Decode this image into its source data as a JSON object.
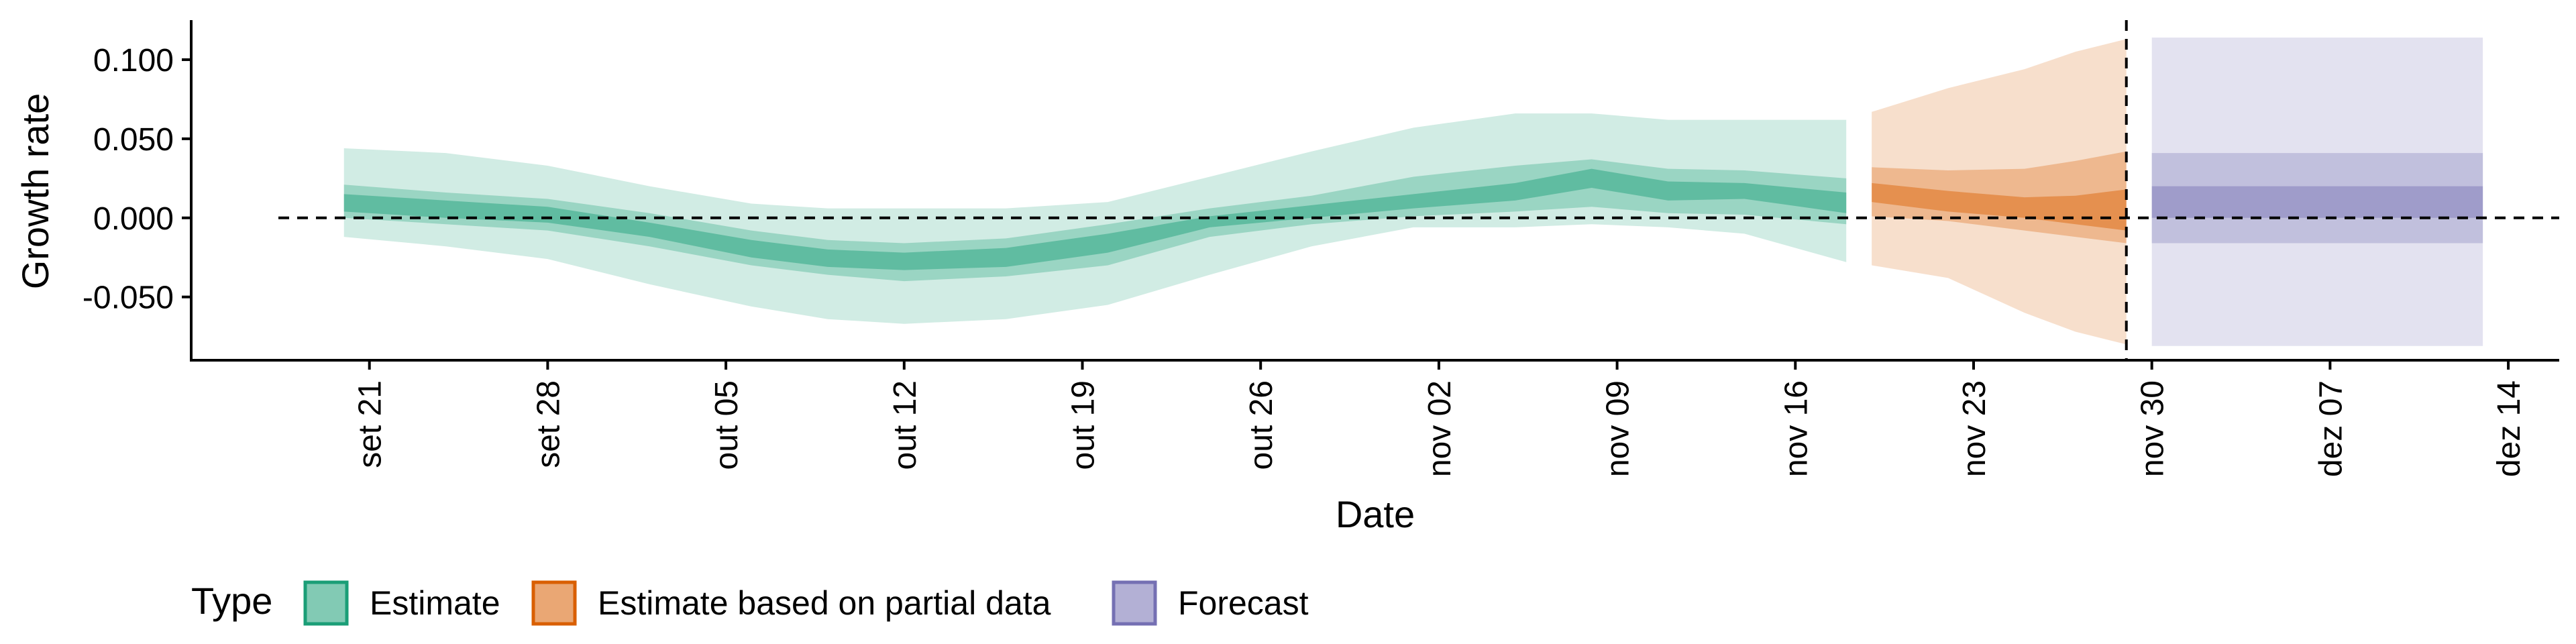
{
  "chart_data": {
    "type": "area",
    "title": "",
    "xlabel": "Date",
    "ylabel": "Growth rate",
    "x_axis": {
      "min": "2020-09-14",
      "max": "2020-12-16",
      "tick_dates": [
        "2020-09-21",
        "2020-09-28",
        "2020-10-05",
        "2020-10-12",
        "2020-10-19",
        "2020-10-26",
        "2020-11-02",
        "2020-11-09",
        "2020-11-16",
        "2020-11-23",
        "2020-11-30",
        "2020-12-07",
        "2020-12-14"
      ],
      "tick_labels": [
        "set 21",
        "set 28",
        "out 05",
        "out 12",
        "out 19",
        "out 26",
        "nov 02",
        "nov 09",
        "nov 16",
        "nov 23",
        "nov 30",
        "dez 07",
        "dez 14"
      ]
    },
    "y_axis": {
      "min": -0.09,
      "max": 0.125,
      "ticks": [
        -0.05,
        0.0,
        0.05,
        0.1
      ],
      "tick_labels": [
        "-0.050",
        "0.000",
        "0.050",
        "0.100"
      ]
    },
    "reference_lines": {
      "horizontal_y": 0,
      "vertical_date": "2020-11-29"
    },
    "legend": {
      "title": "Type",
      "position": "bottom-left",
      "items": [
        {
          "key": "estimate",
          "label": "Estimate"
        },
        {
          "key": "partial",
          "label": "Estimate based on partial data"
        },
        {
          "key": "forecast",
          "label": "Forecast"
        }
      ]
    },
    "colors": {
      "estimate": "#1b9e77",
      "partial": "#d95f02",
      "forecast": "#7570b3"
    },
    "series": [
      {
        "name": "Estimate",
        "key": "estimate",
        "start_date": "2020-09-20",
        "points": [
          {
            "date": "2020-09-20",
            "lo90": -0.012,
            "hi90": 0.044,
            "lo50": 0.0,
            "hi50": 0.021,
            "lo20": 0.004,
            "hi20": 0.015
          },
          {
            "date": "2020-09-24",
            "lo90": -0.018,
            "hi90": 0.041,
            "lo50": -0.004,
            "hi50": 0.016,
            "lo20": 0.0,
            "hi20": 0.011
          },
          {
            "date": "2020-09-28",
            "lo90": -0.026,
            "hi90": 0.033,
            "lo50": -0.008,
            "hi50": 0.012,
            "lo20": -0.003,
            "hi20": 0.007
          },
          {
            "date": "2020-10-02",
            "lo90": -0.042,
            "hi90": 0.02,
            "lo50": -0.018,
            "hi50": 0.003,
            "lo20": -0.012,
            "hi20": -0.003
          },
          {
            "date": "2020-10-06",
            "lo90": -0.056,
            "hi90": 0.009,
            "lo50": -0.03,
            "hi50": -0.008,
            "lo20": -0.025,
            "hi20": -0.014
          },
          {
            "date": "2020-10-09",
            "lo90": -0.064,
            "hi90": 0.006,
            "lo50": -0.036,
            "hi50": -0.014,
            "lo20": -0.031,
            "hi20": -0.02
          },
          {
            "date": "2020-10-12",
            "lo90": -0.067,
            "hi90": 0.006,
            "lo50": -0.04,
            "hi50": -0.016,
            "lo20": -0.033,
            "hi20": -0.022
          },
          {
            "date": "2020-10-16",
            "lo90": -0.064,
            "hi90": 0.006,
            "lo50": -0.037,
            "hi50": -0.013,
            "lo20": -0.031,
            "hi20": -0.019
          },
          {
            "date": "2020-10-20",
            "lo90": -0.055,
            "hi90": 0.01,
            "lo50": -0.03,
            "hi50": -0.004,
            "lo20": -0.022,
            "hi20": -0.01
          },
          {
            "date": "2020-10-24",
            "lo90": -0.036,
            "hi90": 0.026,
            "lo50": -0.012,
            "hi50": 0.006,
            "lo20": -0.006,
            "hi20": 0.001
          },
          {
            "date": "2020-10-28",
            "lo90": -0.018,
            "hi90": 0.042,
            "lo50": -0.004,
            "hi50": 0.014,
            "lo20": 0.0,
            "hi20": 0.008
          },
          {
            "date": "2020-11-01",
            "lo90": -0.006,
            "hi90": 0.057,
            "lo50": 0.001,
            "hi50": 0.026,
            "lo20": 0.006,
            "hi20": 0.015
          },
          {
            "date": "2020-11-05",
            "lo90": -0.006,
            "hi90": 0.066,
            "lo50": 0.004,
            "hi50": 0.033,
            "lo20": 0.011,
            "hi20": 0.022
          },
          {
            "date": "2020-11-08",
            "lo90": -0.004,
            "hi90": 0.066,
            "lo50": 0.007,
            "hi50": 0.037,
            "lo20": 0.019,
            "hi20": 0.031
          },
          {
            "date": "2020-11-11",
            "lo90": -0.006,
            "hi90": 0.062,
            "lo50": 0.003,
            "hi50": 0.031,
            "lo20": 0.011,
            "hi20": 0.023
          },
          {
            "date": "2020-11-14",
            "lo90": -0.01,
            "hi90": 0.062,
            "lo50": 0.002,
            "hi50": 0.03,
            "lo20": 0.012,
            "hi20": 0.022
          },
          {
            "date": "2020-11-18",
            "lo90": -0.028,
            "hi90": 0.062,
            "lo50": -0.004,
            "hi50": 0.025,
            "lo20": 0.003,
            "hi20": 0.016
          }
        ]
      },
      {
        "name": "Estimate based on partial data",
        "key": "partial",
        "start_date": "2020-11-19",
        "points": [
          {
            "date": "2020-11-19",
            "lo90": -0.03,
            "hi90": 0.067,
            "lo50": 0.001,
            "hi50": 0.032,
            "lo20": 0.01,
            "hi20": 0.022
          },
          {
            "date": "2020-11-22",
            "lo90": -0.038,
            "hi90": 0.082,
            "lo50": -0.002,
            "hi50": 0.03,
            "lo20": 0.004,
            "hi20": 0.017
          },
          {
            "date": "2020-11-25",
            "lo90": -0.06,
            "hi90": 0.094,
            "lo50": -0.008,
            "hi50": 0.031,
            "lo20": 0.0,
            "hi20": 0.013
          },
          {
            "date": "2020-11-27",
            "lo90": -0.072,
            "hi90": 0.105,
            "lo50": -0.012,
            "hi50": 0.036,
            "lo20": -0.004,
            "hi20": 0.014
          },
          {
            "date": "2020-11-29",
            "lo90": -0.08,
            "hi90": 0.113,
            "lo50": -0.016,
            "hi50": 0.042,
            "lo20": -0.008,
            "hi20": 0.018
          }
        ]
      },
      {
        "name": "Forecast",
        "key": "forecast",
        "start_date": "2020-11-30",
        "points": [
          {
            "date": "2020-11-30",
            "lo90": -0.081,
            "hi90": 0.114,
            "lo50": -0.016,
            "hi50": 0.041,
            "lo20": 0.0,
            "hi20": 0.02
          },
          {
            "date": "2020-12-13",
            "lo90": -0.081,
            "hi90": 0.114,
            "lo50": -0.016,
            "hi50": 0.041,
            "lo20": 0.0,
            "hi20": 0.02
          }
        ]
      }
    ]
  }
}
